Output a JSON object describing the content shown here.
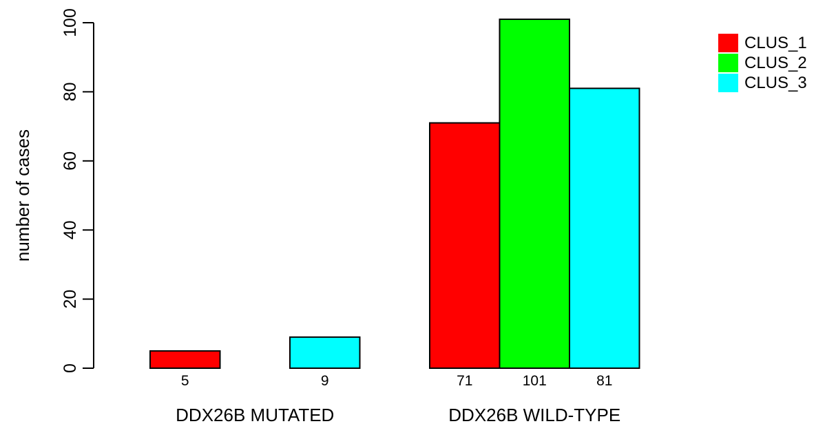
{
  "chart_data": {
    "type": "bar",
    "ylabel": "number of cases",
    "ylim": [
      0,
      100
    ],
    "yticks": [
      0,
      20,
      40,
      60,
      80,
      100
    ],
    "categories": [
      "DDX26B MUTATED",
      "DDX26B WILD-TYPE"
    ],
    "series": [
      {
        "name": "CLUS_1",
        "color": "#ff0000",
        "values": [
          5,
          71
        ]
      },
      {
        "name": "CLUS_2",
        "color": "#00ff00",
        "values": [
          0,
          101
        ]
      },
      {
        "name": "CLUS_3",
        "color": "#00ffff",
        "values": [
          9,
          81
        ]
      }
    ],
    "count_labels": [
      [
        "5",
        "",
        "9"
      ],
      [
        "71",
        "101",
        "81"
      ]
    ],
    "legend_position": "top-right",
    "grid": false
  }
}
